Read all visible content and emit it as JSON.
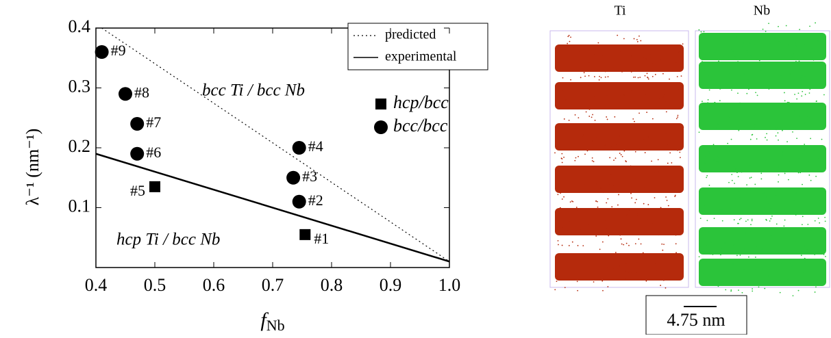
{
  "chart_data": {
    "type": "scatter",
    "xlabel": {
      "main": "f",
      "sub": "Nb"
    },
    "ylabel": "λ⁻¹ (nm⁻¹)",
    "xlim": [
      0.4,
      1.0
    ],
    "xticks": [
      0.4,
      0.5,
      0.6,
      0.7,
      0.8,
      0.9,
      {
        "value": 1.0,
        "label": "1.0"
      }
    ],
    "ylim": [
      0,
      0.4
    ],
    "yticks": [
      0.1,
      0.2,
      0.3,
      0.4
    ],
    "lines": [
      {
        "name": "predicted",
        "style": "dotted",
        "color": "#000000",
        "x": [
          0.41,
          1.0
        ],
        "values": [
          0.4,
          0.01
        ]
      },
      {
        "name": "experimental",
        "style": "solid",
        "color": "#000000",
        "x": [
          0.4,
          1.0
        ],
        "values": [
          0.19,
          0.01
        ]
      }
    ],
    "series": [
      {
        "name": "hcp/bcc",
        "marker": "square",
        "color": "#000000",
        "x": [
          0.755,
          0.5
        ],
        "values": [
          0.055,
          0.135
        ],
        "labels": [
          "#1",
          "#5"
        ]
      },
      {
        "name": "bcc/bcc",
        "marker": "circle",
        "color": "#000000",
        "x": [
          0.745,
          0.745,
          0.735,
          0.47,
          0.47,
          0.45,
          0.41
        ],
        "values": [
          0.11,
          0.2,
          0.15,
          0.19,
          0.24,
          0.29,
          0.36
        ],
        "labels": [
          "#2",
          "#4",
          "#3",
          "#6",
          "#7",
          "#8",
          "#9"
        ]
      }
    ],
    "annotations": [
      "bcc Ti / bcc Nb",
      "hcp Ti / bcc Nb"
    ]
  },
  "panel": {
    "labels": [
      "Ti",
      "Nb"
    ],
    "scale_bar": "4.75 nm"
  }
}
